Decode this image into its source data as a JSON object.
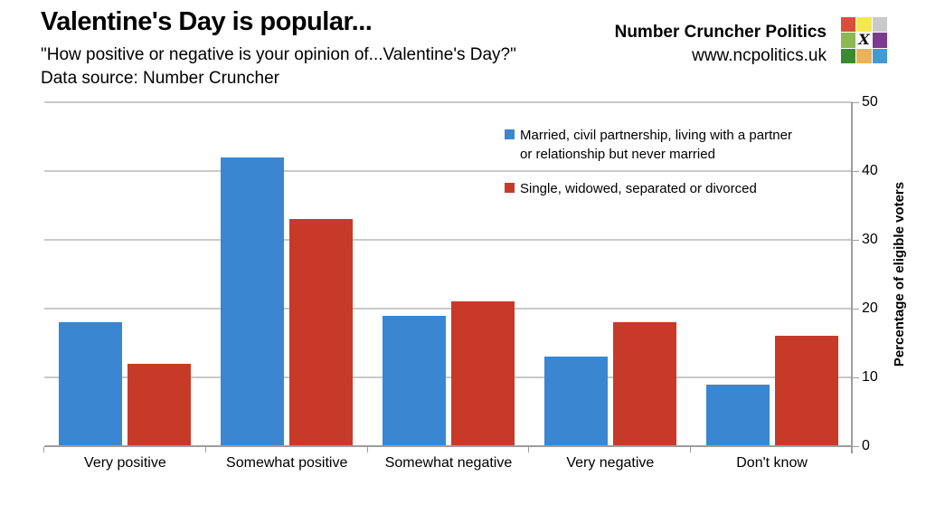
{
  "header": {
    "title": "Valentine's Day is popular...",
    "subtitle": "\"How positive or negative is your opinion of...Valentine's Day?\"",
    "datasource": "Data source: Number Cruncher",
    "brand_name": "Number Cruncher Politics",
    "brand_url": "www.ncpolitics.uk",
    "logo_center_glyph": "X",
    "logo_colors": [
      [
        "#d8503a",
        "#f3e94e",
        "#c9c9c9"
      ],
      [
        "#8cb850",
        "#ffffff",
        "#7b3c90"
      ],
      [
        "#3a8a31",
        "#e9b459",
        "#4599d3"
      ]
    ]
  },
  "chart_data": {
    "type": "bar",
    "categories": [
      "Very positive",
      "Somewhat positive",
      "Somewhat negative",
      "Very negative",
      "Don't know"
    ],
    "series": [
      {
        "name": "Married, civil partnership, living with a partner or relationship but never married",
        "color": "#3b86d1",
        "values": [
          18,
          42,
          19,
          13,
          9
        ]
      },
      {
        "name": "Single, widowed, separated or divorced",
        "color": "#c83a28",
        "values": [
          12,
          33,
          21,
          18,
          16
        ]
      }
    ],
    "xlabel": "",
    "ylabel": "Percentage of eligible voters",
    "ylim": [
      0,
      50
    ],
    "yticks": [
      0,
      10,
      20,
      30,
      40,
      50
    ],
    "grid": true,
    "legend_position": "inside-top-right",
    "colors": {
      "grid": "#c9c9c9",
      "axis": "#9d9d9d",
      "text": "#000000"
    }
  }
}
